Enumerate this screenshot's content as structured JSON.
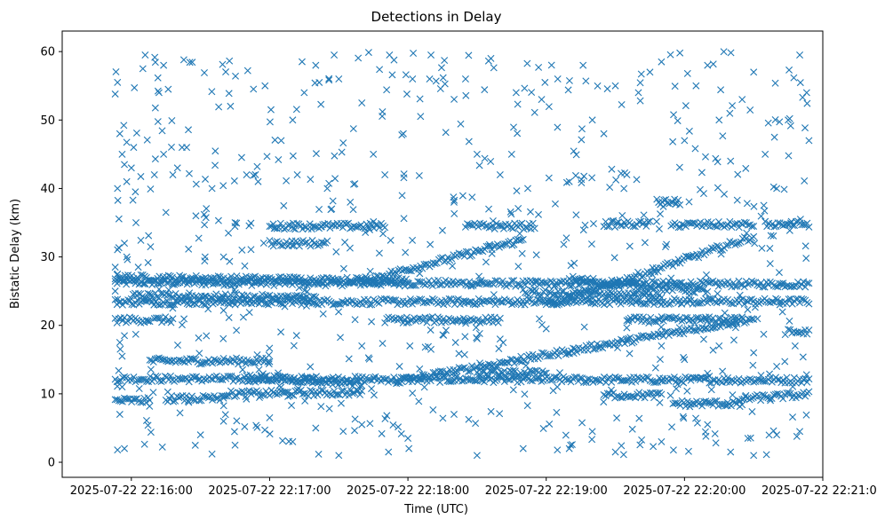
{
  "chart_data": {
    "type": "scatter",
    "title": "Detections in Delay",
    "xlabel": "Time (UTC)",
    "ylabel": "Bistatic Delay (km)",
    "marker": "x",
    "color": "#1f77b4",
    "xlim_seconds": [
      -30,
      300
    ],
    "ylim": [
      -2.2,
      63
    ],
    "x_ticks": [
      {
        "t": 0,
        "label": "2025-07-22 22:16:00"
      },
      {
        "t": 60,
        "label": "2025-07-22 22:17:00"
      },
      {
        "t": 120,
        "label": "2025-07-22 22:18:00"
      },
      {
        "t": 180,
        "label": "2025-07-22 22:19:00"
      },
      {
        "t": 240,
        "label": "2025-07-22 22:20:00"
      },
      {
        "t": 300,
        "label": "2025-07-22 22:21:00"
      }
    ],
    "y_ticks": [
      {
        "v": 0,
        "label": "0"
      },
      {
        "v": 10,
        "label": "10"
      },
      {
        "v": 20,
        "label": "20"
      },
      {
        "v": 30,
        "label": "30"
      },
      {
        "v": 40,
        "label": "40"
      },
      {
        "v": 50,
        "label": "50"
      },
      {
        "v": 60,
        "label": "60"
      }
    ],
    "time_span_seconds": [
      -7,
      294
    ],
    "tracks": [
      {
        "t0": -7,
        "t1": 294,
        "d0": 26.3,
        "d1": 26.0
      },
      {
        "t0": -7,
        "t1": 294,
        "d0": 12.2,
        "d1": 12.0
      },
      {
        "t0": -7,
        "t1": 294,
        "d0": 23.4,
        "d1": 23.5
      },
      {
        "t0": -7,
        "t1": 120,
        "d0": 27.0,
        "d1": 26.5
      },
      {
        "t0": 0,
        "t1": 80,
        "d0": 24.3,
        "d1": 24.0
      },
      {
        "t0": -7,
        "t1": 8,
        "d0": 9.0,
        "d1": 9.0
      },
      {
        "t0": -7,
        "t1": 8,
        "d0": 20.8,
        "d1": 20.8
      },
      {
        "t0": 10,
        "t1": 18,
        "d0": 20.8,
        "d1": 20.8
      },
      {
        "t0": 8,
        "t1": 60,
        "d0": 14.8,
        "d1": 14.8
      },
      {
        "t0": 50,
        "t1": 100,
        "d0": 12.5,
        "d1": 11.5
      },
      {
        "t0": 40,
        "t1": 100,
        "d0": 10.0,
        "d1": 10.2
      },
      {
        "t0": 60,
        "t1": 110,
        "d0": 34.5,
        "d1": 34.5
      },
      {
        "t0": 60,
        "t1": 85,
        "d0": 32.0,
        "d1": 32.0
      },
      {
        "t0": 100,
        "t1": 170,
        "d0": 26.5,
        "d1": 32.5
      },
      {
        "t0": 115,
        "t1": 270,
        "d0": 11.8,
        "d1": 21.0
      },
      {
        "t0": 180,
        "t1": 270,
        "d0": 22.8,
        "d1": 33.0
      },
      {
        "t0": 170,
        "t1": 230,
        "d0": 24.8,
        "d1": 24.3
      },
      {
        "t0": 190,
        "t1": 250,
        "d0": 26.8,
        "d1": 25.0
      },
      {
        "t0": 145,
        "t1": 175,
        "d0": 34.5,
        "d1": 34.5
      },
      {
        "t0": 205,
        "t1": 225,
        "d0": 34.8,
        "d1": 34.8
      },
      {
        "t0": 235,
        "t1": 270,
        "d0": 34.7,
        "d1": 34.7
      },
      {
        "t0": 228,
        "t1": 238,
        "d0": 38.0,
        "d1": 38.0
      },
      {
        "t0": 215,
        "t1": 265,
        "d0": 20.8,
        "d1": 20.8
      },
      {
        "t0": 205,
        "t1": 230,
        "d0": 9.8,
        "d1": 9.8
      },
      {
        "t0": 235,
        "t1": 265,
        "d0": 8.6,
        "d1": 8.6
      },
      {
        "t0": 265,
        "t1": 294,
        "d0": 9.3,
        "d1": 9.9
      },
      {
        "t0": 275,
        "t1": 294,
        "d0": 34.8,
        "d1": 34.8
      },
      {
        "t0": 285,
        "t1": 294,
        "d0": 19.0,
        "d1": 19.0
      },
      {
        "t0": 110,
        "t1": 160,
        "d0": 20.8,
        "d1": 20.8
      },
      {
        "t0": 150,
        "t1": 180,
        "d0": 13.0,
        "d1": 13.0
      },
      {
        "t0": 15,
        "t1": 40,
        "d0": 9.3,
        "d1": 9.3
      }
    ],
    "extra_points": [
      [
        -7,
        28.5
      ],
      [
        -6,
        27.5
      ],
      [
        -7,
        25.0
      ],
      [
        -6,
        23.8
      ],
      [
        -5,
        17.5
      ],
      [
        -4,
        15.5
      ],
      [
        -3,
        18.5
      ],
      [
        -4,
        11.0
      ],
      [
        -5,
        7.0
      ],
      [
        -6,
        1.8
      ],
      [
        -3,
        2.0
      ],
      [
        -7,
        53.8
      ],
      [
        -6,
        55.5
      ],
      [
        -5,
        48.0
      ],
      [
        -4,
        45.0
      ],
      [
        -6,
        40.0
      ],
      [
        -3,
        43.5
      ],
      [
        -2,
        41.0
      ],
      [
        -3,
        32.0
      ],
      [
        -2,
        30.0
      ],
      [
        0,
        43.0
      ],
      [
        1,
        46.0
      ],
      [
        2,
        35.0
      ],
      [
        3,
        28.5
      ],
      [
        5,
        57.5
      ],
      [
        6,
        59.5
      ],
      [
        10,
        42.0
      ],
      [
        12,
        54.0
      ],
      [
        14,
        58.0
      ],
      [
        14,
        45.0
      ],
      [
        15,
        36.5
      ],
      [
        16,
        54.5
      ],
      [
        18,
        42.0
      ],
      [
        20,
        43.0
      ],
      [
        22,
        46.0
      ],
      [
        24,
        46.0
      ],
      [
        28,
        36.0
      ],
      [
        32,
        30.0
      ],
      [
        35,
        40.0
      ],
      [
        40,
        30.0
      ],
      [
        45,
        35.0
      ],
      [
        48,
        31.0
      ],
      [
        50,
        42.0
      ],
      [
        55,
        41.0
      ],
      [
        58,
        55.0
      ],
      [
        65,
        47.0
      ],
      [
        70,
        50.0
      ],
      [
        72,
        42.0
      ],
      [
        75,
        54.0
      ],
      [
        80,
        58.0
      ],
      [
        85,
        40.0
      ],
      [
        88,
        59.5
      ],
      [
        90,
        56.0
      ],
      [
        95,
        38.0
      ],
      [
        100,
        52.5
      ],
      [
        105,
        45.0
      ],
      [
        110,
        42.0
      ],
      [
        112,
        59.5
      ],
      [
        118,
        48.0
      ],
      [
        122,
        56.0
      ],
      [
        130,
        59.5
      ],
      [
        140,
        38.0
      ],
      [
        145,
        56.0
      ],
      [
        150,
        45.0
      ],
      [
        156,
        59.0
      ],
      [
        160,
        42.0
      ],
      [
        165,
        45.0
      ],
      [
        172,
        40.0
      ],
      [
        178,
        53.0
      ],
      [
        185,
        56.0
      ],
      [
        190,
        41.0
      ],
      [
        196,
        58.0
      ],
      [
        200,
        50.0
      ],
      [
        205,
        48.0
      ],
      [
        210,
        55.0
      ],
      [
        215,
        42.0
      ],
      [
        220,
        54.0
      ],
      [
        225,
        57.0
      ],
      [
        230,
        58.5
      ],
      [
        240,
        47.0
      ],
      [
        245,
        55.0
      ],
      [
        250,
        58.0
      ],
      [
        255,
        50.0
      ],
      [
        260,
        44.0
      ],
      [
        265,
        53.0
      ],
      [
        270,
        57.0
      ],
      [
        275,
        45.0
      ],
      [
        280,
        40.0
      ],
      [
        285,
        50.0
      ],
      [
        290,
        59.5
      ],
      [
        293,
        54.0
      ],
      [
        294,
        47.0
      ],
      [
        60,
        6.5
      ],
      [
        70,
        3.0
      ],
      [
        80,
        5.0
      ],
      [
        90,
        1.0
      ],
      [
        120,
        3.5
      ],
      [
        150,
        1.0
      ],
      [
        170,
        2.0
      ],
      [
        190,
        2.0
      ],
      [
        210,
        1.5
      ],
      [
        230,
        3.0
      ],
      [
        260,
        1.5
      ],
      [
        270,
        1.0
      ],
      [
        280,
        4.0
      ],
      [
        290,
        4.5
      ],
      [
        30,
        4.0
      ],
      [
        40,
        6.0
      ],
      [
        45,
        2.5
      ],
      [
        35,
        1.2
      ],
      [
        100,
        5.5
      ],
      [
        140,
        7.0
      ],
      [
        200,
        4.5
      ],
      [
        250,
        5.5
      ],
      [
        230,
        17.0
      ],
      [
        240,
        15.0
      ],
      [
        250,
        13.0
      ],
      [
        255,
        17.0
      ],
      [
        270,
        16.0
      ],
      [
        280,
        14.0
      ],
      [
        288,
        17.0
      ],
      [
        100,
        17.0
      ],
      [
        130,
        16.5
      ],
      [
        160,
        18.0
      ],
      [
        180,
        19.5
      ],
      [
        190,
        16.0
      ]
    ]
  }
}
